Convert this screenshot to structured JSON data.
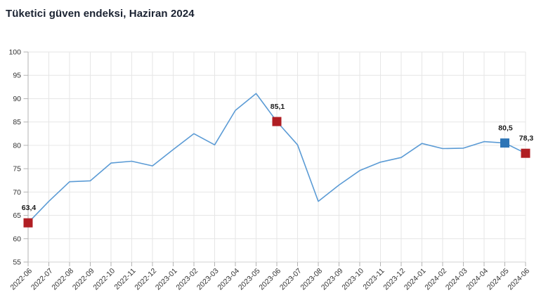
{
  "title": "Tüketici güven endeksi, Haziran 2024",
  "colors": {
    "title": "#1a2231",
    "line": "#5b9bd5",
    "marker_red": "#b01e23",
    "marker_blue": "#2e75b6",
    "grid": "#e6e6e6",
    "axis_left": "#b3b3b3",
    "axis_bottom": "#d0d0d0",
    "tick": "#b3b3b3",
    "tick_label": "#333333",
    "data_label": "#1a1a1a",
    "background": "#ffffff"
  },
  "chart_data": {
    "type": "line",
    "title": "Tüketici güven endeksi, Haziran 2024",
    "categories": [
      "2022-06",
      "2022-07",
      "2022-08",
      "2022-09",
      "2022-10",
      "2022-11",
      "2022-12",
      "2023-01",
      "2023-02",
      "2023-03",
      "2023-04",
      "2023-05",
      "2023-06",
      "2023-07",
      "2023-08",
      "2023-09",
      "2023-10",
      "2023-11",
      "2023-12",
      "2024-01",
      "2024-02",
      "2024-03",
      "2024-04",
      "2024-05",
      "2024-06"
    ],
    "series": [
      {
        "name": "Tüketici güven endeksi",
        "values": [
          63.4,
          68.0,
          72.2,
          72.4,
          76.2,
          76.6,
          75.6,
          79.1,
          82.5,
          80.1,
          87.5,
          91.1,
          85.1,
          80.1,
          68.0,
          71.5,
          74.6,
          76.4,
          77.4,
          80.4,
          79.3,
          79.4,
          80.8,
          80.5,
          78.3
        ]
      }
    ],
    "ylim": [
      55,
      100
    ],
    "ytick_step": 5,
    "xlabel": "",
    "ylabel": "",
    "grid": true,
    "legend": "none",
    "highlighted_points": [
      {
        "category": "2022-06",
        "value": 63.4,
        "label": "63,4",
        "marker_color": "#b01e23"
      },
      {
        "category": "2023-06",
        "value": 85.1,
        "label": "85,1",
        "marker_color": "#b01e23"
      },
      {
        "category": "2024-05",
        "value": 80.5,
        "label": "80,5",
        "marker_color": "#2e75b6"
      },
      {
        "category": "2024-06",
        "value": 78.3,
        "label": "78,3",
        "marker_color": "#b01e23"
      }
    ]
  }
}
